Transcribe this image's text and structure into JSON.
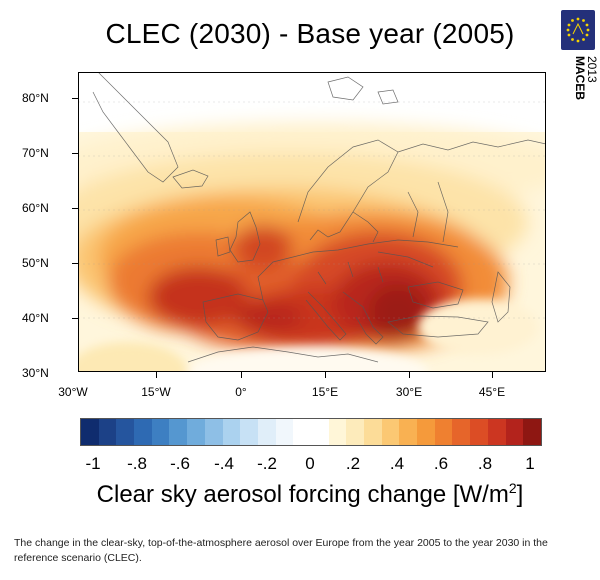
{
  "title": "CLEC (2030) - Base year (2005)",
  "brand": {
    "name": "MACEB",
    "year": "2013"
  },
  "lat_labels": [
    "80°N",
    "70°N",
    "60°N",
    "50°N",
    "40°N",
    "30°N"
  ],
  "lon_labels": [
    "30°W",
    "15°W",
    "0°",
    "15°E",
    "30°E",
    "45°E"
  ],
  "colorbar": {
    "tick_labels": [
      "-1",
      "-.8",
      "-.6",
      "-.4",
      "-.2",
      "0",
      ".2",
      ".4",
      ".6",
      ".8",
      "1"
    ],
    "title_prefix": "Clear sky aerosol forcing change [W/m",
    "title_sup": "2",
    "title_suffix": "]",
    "colors": [
      "#0f2c6e",
      "#1c4187",
      "#25559e",
      "#2e6ab3",
      "#3d7fc2",
      "#5597d0",
      "#70acdc",
      "#8ebfe6",
      "#abd2ef",
      "#c7e1f5",
      "#e0eef9",
      "#f1f7fc",
      "#ffffff",
      "#ffffff",
      "#fff6d8",
      "#fdebbb",
      "#fcdc98",
      "#fbc873",
      "#f9b152",
      "#f59a3b",
      "#ef8030",
      "#e6652a",
      "#dc4d25",
      "#cc3621",
      "#b3231c",
      "#8e1712"
    ]
  },
  "caption": "The change in the clear-sky, top-of-the-atmosphere aerosol over Europe from the year 2005 to the year 2030 in the reference scenario (CLEC)."
}
